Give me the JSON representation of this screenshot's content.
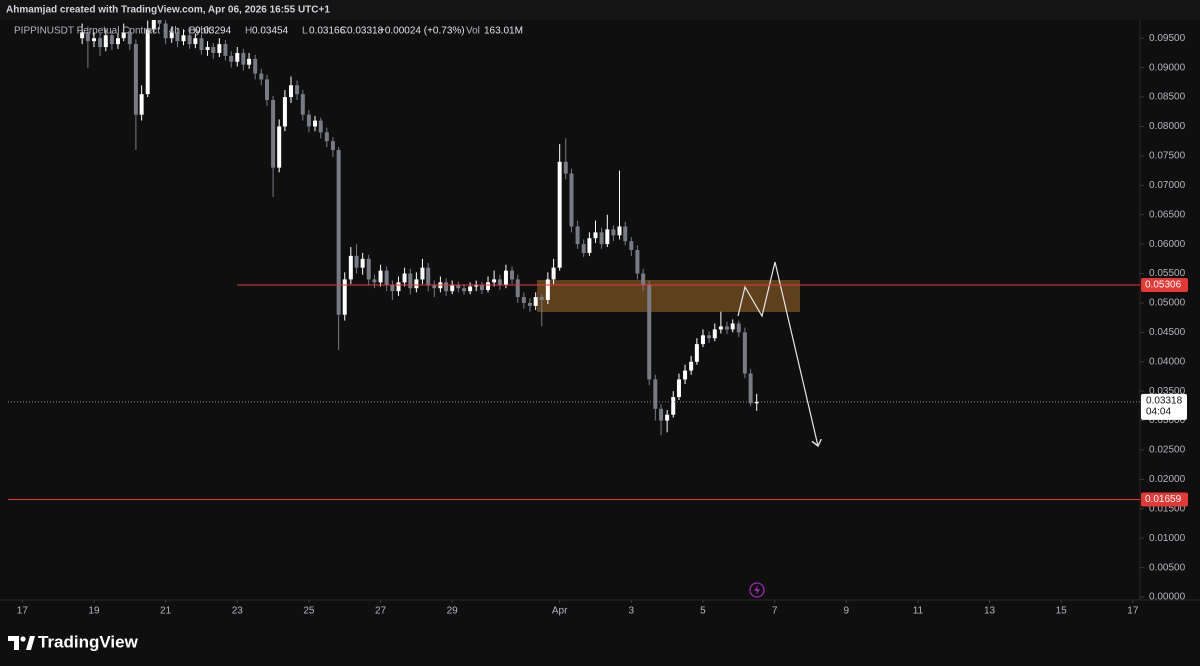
{
  "chart_data": {
    "type": "candlestick",
    "title": "Ahmamjad created with TradingView.com, Apr 06, 2026 16:55 UTC+1",
    "symbol": "PIPPINUSDT Perpetual Contract · 4h · Bybit",
    "legend": [
      {
        "label": "O",
        "value": 0.03294
      },
      {
        "label": "H",
        "value": 0.03454
      },
      {
        "label": "L",
        "value": 0.03166
      },
      {
        "label": "C",
        "value": 0.03318
      }
    ],
    "change": "+0.00024 (+0.73%)",
    "volume_label": "Vol",
    "volume": "163.01M",
    "brand": "TradingView",
    "up_color": "#ffffff",
    "down_color": "#787b86",
    "grid": false,
    "xlim": [
      16.6,
      48.2
    ],
    "ylim": [
      -0.0005,
      0.1015
    ],
    "xticks": [
      17,
      19,
      21,
      23,
      25,
      27,
      29,
      {
        "value": 32,
        "label": "Apr"
      },
      {
        "value": 34,
        "label": "3"
      },
      {
        "value": 36,
        "label": "5"
      },
      {
        "value": 38,
        "label": "7"
      },
      {
        "value": 40,
        "label": "9"
      },
      {
        "value": 42,
        "label": "11"
      },
      {
        "value": 44,
        "label": "13"
      },
      {
        "value": 46,
        "label": "15"
      },
      {
        "value": 48,
        "label": "17"
      }
    ],
    "yticks": [
      {
        "value": 0.095,
        "label": "0.09500"
      },
      {
        "value": 0.09,
        "label": "0.09000"
      },
      {
        "value": 0.085,
        "label": "0.08500"
      },
      {
        "value": 0.08,
        "label": "0.08000"
      },
      {
        "value": 0.075,
        "label": "0.07500"
      },
      {
        "value": 0.07,
        "label": "0.07000"
      },
      {
        "value": 0.065,
        "label": "0.06500"
      },
      {
        "value": 0.06,
        "label": "0.06000"
      },
      {
        "value": 0.055,
        "label": "0.05500"
      },
      {
        "value": 0.05,
        "label": "0.05000"
      },
      {
        "value": 0.045,
        "label": "0.04500"
      },
      {
        "value": 0.04,
        "label": "0.04000"
      },
      {
        "value": 0.035,
        "label": "0.03500"
      },
      {
        "value": 0.03,
        "label": "0.03000"
      },
      {
        "value": 0.025,
        "label": "0.02500"
      },
      {
        "value": 0.02,
        "label": "0.02000"
      },
      {
        "value": 0.015,
        "label": "0.01500"
      },
      {
        "value": 0.01,
        "label": "0.01000"
      },
      {
        "value": 0.005,
        "label": "0.00500"
      },
      {
        "value": 0,
        "label": "0.00000"
      }
    ],
    "levels": [
      {
        "value": 0.05306,
        "color": "#e53935"
      },
      {
        "value": 0.01659,
        "color": "#e53935"
      }
    ],
    "last_price": {
      "value": 0.03318,
      "countdown": "04:04"
    },
    "x": [
      18.67,
      18.83,
      19,
      19.17,
      19.33,
      19.5,
      19.67,
      19.83,
      20,
      20.17,
      20.33,
      20.5,
      20.67,
      20.83,
      21,
      21.17,
      21.33,
      21.5,
      21.67,
      21.83,
      22,
      22.17,
      22.33,
      22.5,
      22.67,
      22.83,
      23,
      23.17,
      23.33,
      23.5,
      23.67,
      23.83,
      24,
      24.17,
      24.33,
      24.5,
      24.67,
      24.83,
      25,
      25.17,
      25.33,
      25.5,
      25.67,
      25.83,
      26,
      26.17,
      26.33,
      26.5,
      26.67,
      26.83,
      27,
      27.17,
      27.33,
      27.5,
      27.67,
      27.83,
      28,
      28.17,
      28.33,
      28.5,
      28.67,
      28.83,
      29,
      29.17,
      29.33,
      29.5,
      29.67,
      29.83,
      30,
      30.17,
      30.33,
      30.5,
      30.67,
      30.83,
      31,
      31.17,
      31.33,
      31.5,
      31.67,
      31.83,
      32,
      32.17,
      32.33,
      32.5,
      32.67,
      32.83,
      33,
      33.17,
      33.33,
      33.5,
      33.67,
      33.83,
      34,
      34.17,
      34.33,
      34.5,
      34.67,
      34.83,
      35,
      35.17,
      35.33,
      35.5,
      35.67,
      35.83,
      36,
      36.17,
      36.33,
      36.5,
      36.67,
      36.83,
      37,
      37.17,
      37.33,
      37.5
    ],
    "open": [
      0.095,
      0.096,
      0.0945,
      0.095,
      0.0935,
      0.0955,
      0.094,
      0.095,
      0.096,
      0.094,
      0.082,
      0.0855,
      0.0965,
      0.099,
      0.0975,
      0.095,
      0.096,
      0.0945,
      0.0955,
      0.094,
      0.095,
      0.093,
      0.0935,
      0.0925,
      0.094,
      0.092,
      0.091,
      0.0925,
      0.0905,
      0.0915,
      0.089,
      0.088,
      0.0845,
      0.073,
      0.08,
      0.085,
      0.087,
      0.0855,
      0.082,
      0.08,
      0.081,
      0.079,
      0.0775,
      0.076,
      0.048,
      0.054,
      0.058,
      0.056,
      0.0575,
      0.054,
      0.0535,
      0.0555,
      0.053,
      0.052,
      0.0535,
      0.055,
      0.0525,
      0.054,
      0.056,
      0.053,
      0.0525,
      0.0535,
      0.052,
      0.053,
      0.0525,
      0.052,
      0.0528,
      0.053,
      0.0522,
      0.0535,
      0.054,
      0.053,
      0.0555,
      0.054,
      0.051,
      0.05,
      0.0495,
      0.051,
      0.0505,
      0.054,
      0.056,
      0.074,
      0.072,
      0.063,
      0.06,
      0.0585,
      0.061,
      0.062,
      0.06,
      0.0625,
      0.0615,
      0.063,
      0.0605,
      0.059,
      0.055,
      0.053,
      0.037,
      0.032,
      0.03,
      0.031,
      0.034,
      0.037,
      0.0385,
      0.04,
      0.043,
      0.0445,
      0.044,
      0.0455,
      0.046,
      0.0455,
      0.0465,
      0.045,
      0.038,
      0.03294
    ],
    "high": [
      0.0975,
      0.097,
      0.096,
      0.0958,
      0.0965,
      0.0962,
      0.0958,
      0.0975,
      0.0968,
      0.0948,
      0.087,
      0.098,
      0.1,
      0.0998,
      0.0982,
      0.097,
      0.0968,
      0.0965,
      0.0962,
      0.0958,
      0.0957,
      0.0945,
      0.0942,
      0.095,
      0.0947,
      0.0928,
      0.0935,
      0.0932,
      0.0925,
      0.0922,
      0.0898,
      0.0888,
      0.0852,
      0.0812,
      0.0862,
      0.0885,
      0.0878,
      0.0862,
      0.0828,
      0.0818,
      0.0815,
      0.0798,
      0.0782,
      0.0765,
      0.0552,
      0.0595,
      0.06,
      0.0585,
      0.0582,
      0.0548,
      0.0565,
      0.0562,
      0.0538,
      0.0545,
      0.056,
      0.0558,
      0.0552,
      0.0575,
      0.0568,
      0.0538,
      0.0545,
      0.0542,
      0.0538,
      0.0536,
      0.0532,
      0.0535,
      0.0538,
      0.0536,
      0.0545,
      0.0555,
      0.0548,
      0.0565,
      0.0562,
      0.0548,
      0.0518,
      0.0508,
      0.0518,
      0.0515,
      0.0552,
      0.0575,
      0.077,
      0.078,
      0.0728,
      0.064,
      0.0608,
      0.062,
      0.064,
      0.0628,
      0.065,
      0.0632,
      0.0725,
      0.0638,
      0.0612,
      0.0598,
      0.0558,
      0.0538,
      0.0378,
      0.0328,
      0.0318,
      0.035,
      0.038,
      0.0395,
      0.041,
      0.044,
      0.0455,
      0.0452,
      0.0465,
      0.0485,
      0.0468,
      0.0472,
      0.047,
      0.0458,
      0.0388,
      0.03454
    ],
    "low": [
      0.094,
      0.09,
      0.0935,
      0.092,
      0.0928,
      0.093,
      0.0932,
      0.0945,
      0.093,
      0.076,
      0.081,
      0.085,
      0.0958,
      0.0965,
      0.094,
      0.0942,
      0.0935,
      0.0938,
      0.0932,
      0.0933,
      0.0922,
      0.092,
      0.0915,
      0.0918,
      0.0912,
      0.09,
      0.0902,
      0.0895,
      0.0898,
      0.088,
      0.087,
      0.0835,
      0.068,
      0.0722,
      0.0792,
      0.084,
      0.0845,
      0.081,
      0.079,
      0.0792,
      0.078,
      0.0765,
      0.0748,
      0.042,
      0.047,
      0.0532,
      0.055,
      0.0548,
      0.053,
      0.0525,
      0.0528,
      0.052,
      0.0505,
      0.0512,
      0.0528,
      0.0515,
      0.0518,
      0.0532,
      0.052,
      0.051,
      0.0518,
      0.0512,
      0.0515,
      0.0518,
      0.0514,
      0.0515,
      0.052,
      0.0515,
      0.0518,
      0.0528,
      0.0522,
      0.0525,
      0.0532,
      0.05,
      0.049,
      0.0485,
      0.0488,
      0.046,
      0.0498,
      0.0532,
      0.0555,
      0.071,
      0.062,
      0.0592,
      0.0578,
      0.058,
      0.0602,
      0.0592,
      0.0595,
      0.0605,
      0.0608,
      0.0598,
      0.058,
      0.054,
      0.052,
      0.036,
      0.03,
      0.0275,
      0.028,
      0.0305,
      0.0335,
      0.0362,
      0.0378,
      0.0395,
      0.0425,
      0.0432,
      0.0435,
      0.0448,
      0.0447,
      0.045,
      0.0442,
      0.0372,
      0.0325,
      0.03166
    ],
    "close": [
      0.096,
      0.0945,
      0.095,
      0.0935,
      0.0955,
      0.094,
      0.095,
      0.096,
      0.094,
      0.082,
      0.0855,
      0.0965,
      0.099,
      0.0975,
      0.095,
      0.096,
      0.0945,
      0.0955,
      0.094,
      0.095,
      0.093,
      0.0935,
      0.0925,
      0.094,
      0.092,
      0.091,
      0.0925,
      0.0905,
      0.0915,
      0.089,
      0.088,
      0.0845,
      0.073,
      0.08,
      0.085,
      0.087,
      0.0855,
      0.082,
      0.08,
      0.081,
      0.079,
      0.0775,
      0.076,
      0.048,
      0.054,
      0.058,
      0.056,
      0.0575,
      0.054,
      0.0535,
      0.0555,
      0.053,
      0.052,
      0.0535,
      0.055,
      0.0525,
      0.054,
      0.056,
      0.053,
      0.0525,
      0.0535,
      0.052,
      0.053,
      0.0525,
      0.052,
      0.0528,
      0.053,
      0.0522,
      0.0535,
      0.054,
      0.053,
      0.0555,
      0.054,
      0.051,
      0.05,
      0.0495,
      0.051,
      0.0505,
      0.054,
      0.056,
      0.074,
      0.072,
      0.063,
      0.06,
      0.0585,
      0.061,
      0.062,
      0.06,
      0.0625,
      0.0615,
      0.063,
      0.0605,
      0.059,
      0.055,
      0.053,
      0.037,
      0.032,
      0.03,
      0.031,
      0.034,
      0.037,
      0.0385,
      0.04,
      0.043,
      0.0445,
      0.044,
      0.0455,
      0.046,
      0.0455,
      0.0465,
      0.045,
      0.038,
      0.03294,
      0.03318
    ]
  }
}
